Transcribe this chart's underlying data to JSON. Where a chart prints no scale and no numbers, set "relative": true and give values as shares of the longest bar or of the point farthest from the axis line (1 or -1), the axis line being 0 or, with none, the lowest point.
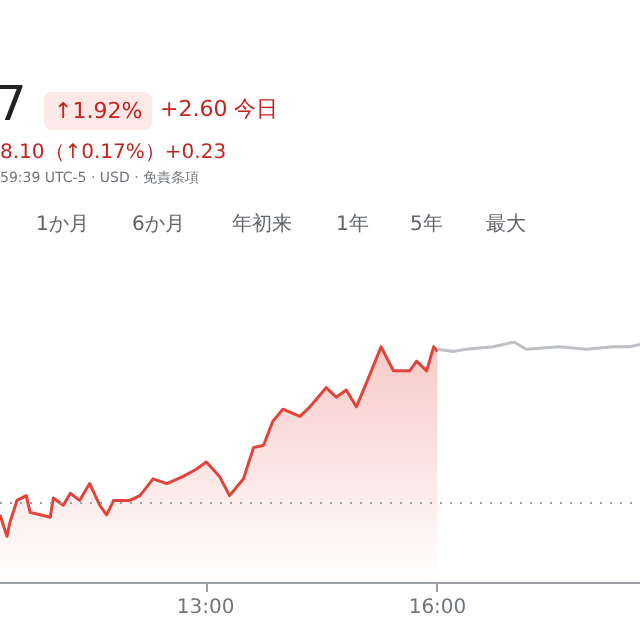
{
  "chart_data": {
    "type": "area",
    "relative": true,
    "annotations": [
      "7",
      "↑1.92%",
      "+2.60 今日",
      "8.10（↑0.17%）+0.23",
      "59:39 UTC-5 · USD · 免責条項",
      "1か月",
      "6か月",
      "年初来",
      "1年",
      "5年",
      "最大"
    ],
    "xlim": [
      10.34,
      18.62
    ],
    "xticks": [
      {
        "value": 13,
        "label": "13:00"
      },
      {
        "value": 16,
        "label": "16:00"
      }
    ],
    "ref_lines": [
      {
        "axis": "y",
        "value": 0.33,
        "color": "#9aa0a6",
        "line_style": "dotted"
      }
    ],
    "series": [
      {
        "color": "#e0443a",
        "x": [
          10.34,
          10.43,
          10.47,
          10.56,
          10.68,
          10.73,
          10.86,
          10.99,
          11.03,
          11.16,
          11.25,
          11.37,
          11.5,
          11.63,
          11.72,
          11.81,
          12.02,
          12.15,
          12.32,
          12.5,
          12.71,
          12.88,
          13.01,
          13.18,
          13.31,
          13.49,
          13.62,
          13.75,
          13.87,
          14.0,
          14.22,
          14.35,
          14.56,
          14.69,
          14.82,
          14.95,
          15.12,
          15.27,
          15.43,
          15.64,
          15.73,
          15.86,
          15.95,
          16.0
        ],
        "values": [
          0.28,
          0.19,
          0.25,
          0.34,
          0.36,
          0.29,
          0.28,
          0.27,
          0.35,
          0.32,
          0.37,
          0.34,
          0.41,
          0.32,
          0.28,
          0.34,
          0.34,
          0.36,
          0.43,
          0.41,
          0.44,
          0.47,
          0.5,
          0.44,
          0.36,
          0.43,
          0.56,
          0.57,
          0.67,
          0.72,
          0.69,
          0.73,
          0.81,
          0.77,
          0.8,
          0.73,
          0.86,
          0.98,
          0.88,
          0.88,
          0.92,
          0.88,
          0.98,
          0.96
        ]
      },
      {
        "type": "line",
        "color": "#bdc1c6",
        "x": [
          16.0,
          16.2,
          16.37,
          16.72,
          16.99,
          17.15,
          17.58,
          17.93,
          18.27,
          18.49,
          18.62
        ],
        "values": [
          0.97,
          0.96,
          0.97,
          0.98,
          1,
          0.97,
          0.98,
          0.97,
          0.98,
          0.98,
          0.99
        ]
      }
    ]
  }
}
